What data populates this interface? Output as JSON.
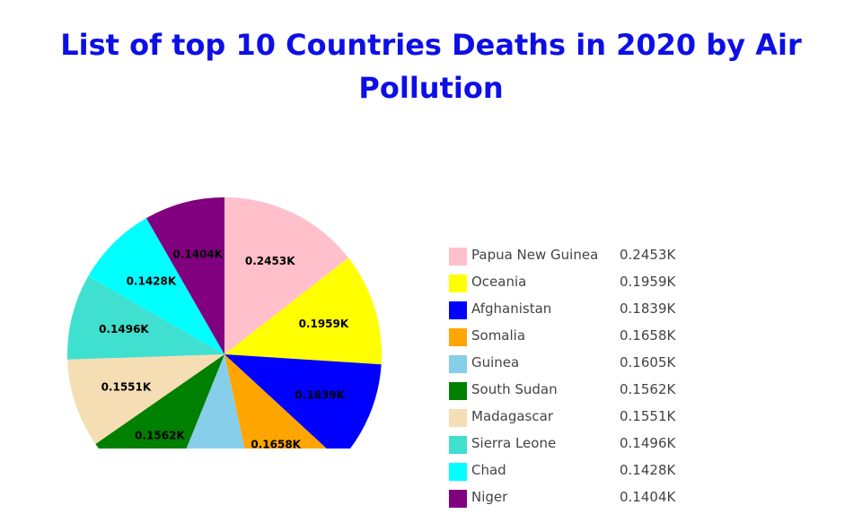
{
  "title_line1": "List of top 10 Countries Deaths in 2020 by Air",
  "title_line2": "Pollution",
  "chart_data": {
    "type": "pie",
    "title": "List of top 10 Countries Deaths in 2020 by Air Pollution",
    "labels": [
      "Papua New Guinea",
      "Oceania",
      "Afghanistan",
      "Somalia",
      "Guinea",
      "South Sudan",
      "Madagascar",
      "Sierra Leone",
      "Chad",
      "Niger"
    ],
    "values": [
      0.2453,
      0.1959,
      0.1839,
      0.1658,
      0.1605,
      0.1562,
      0.1551,
      0.1496,
      0.1428,
      0.1404
    ],
    "value_labels": [
      "0.2453K",
      "0.1959K",
      "0.1839K",
      "0.1658K",
      "0.1605K",
      "0.1562K",
      "0.1551K",
      "0.1496K",
      "0.1428K",
      "0.1404K"
    ],
    "colors": [
      "#ffc0cb",
      "#ffff00",
      "#0000ff",
      "#ffa500",
      "#87ceeb",
      "#008000",
      "#f5deb3",
      "#40e0d0",
      "#00ffff",
      "#800080"
    ],
    "legend_position": "right"
  }
}
